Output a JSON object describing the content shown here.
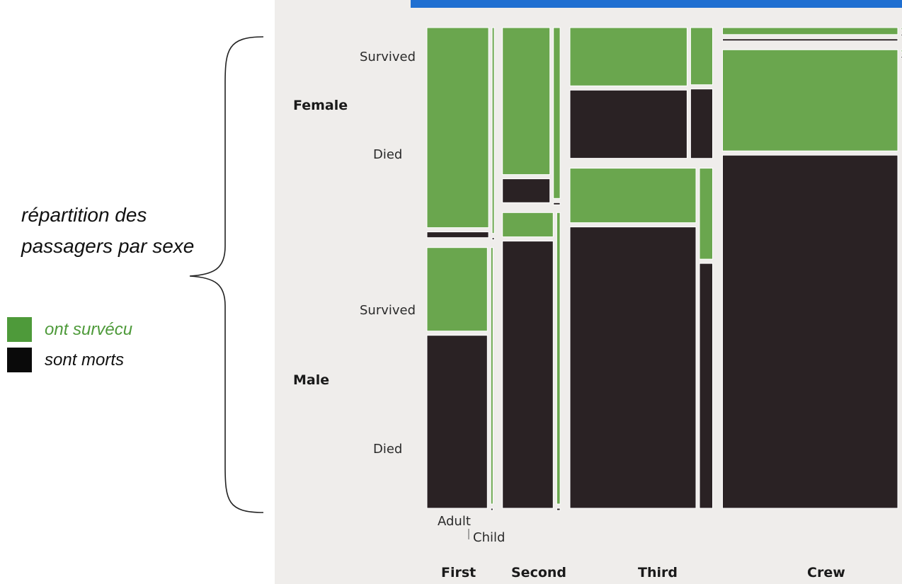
{
  "annotation": {
    "text": "répartition des passagers par sexe"
  },
  "legend": [
    {
      "label": "ont survécu",
      "color": "#4e9a3a",
      "text_color": "#4e9a3a"
    },
    {
      "label": "sont morts",
      "color": "#0a0a0a",
      "text_color": "#111111"
    }
  ],
  "colors": {
    "survived": "#6aa64e",
    "died": "#2a2224",
    "cell_border": "#ffffff",
    "background": "#efedeb",
    "heading_blue": "#1f6fd1"
  },
  "chart_data": {
    "type": "mosaic",
    "title": "",
    "classes": [
      "First",
      "Second",
      "Third",
      "Crew"
    ],
    "sexes": [
      "Female",
      "Male"
    ],
    "ages": [
      "Adult",
      "Child"
    ],
    "outcomes": [
      "Survived",
      "Died"
    ],
    "outcome_labels": [
      "Survived",
      "Died",
      "Survived",
      "Died"
    ],
    "age_labels": [
      "Adult",
      "Child"
    ],
    "counts": {
      "First": {
        "Female": {
          "Adult": {
            "Survived": 140,
            "Died": 4
          },
          "Child": {
            "Survived": 1,
            "Died": 0
          }
        },
        "Male": {
          "Adult": {
            "Survived": 57,
            "Died": 118
          },
          "Child": {
            "Survived": 5,
            "Died": 0
          }
        }
      },
      "Second": {
        "Female": {
          "Adult": {
            "Survived": 80,
            "Died": 13
          },
          "Child": {
            "Survived": 13,
            "Died": 0
          }
        },
        "Male": {
          "Adult": {
            "Survived": 14,
            "Died": 154
          },
          "Child": {
            "Survived": 11,
            "Died": 0
          }
        }
      },
      "Third": {
        "Female": {
          "Adult": {
            "Survived": 76,
            "Died": 89
          },
          "Child": {
            "Survived": 14,
            "Died": 17
          }
        },
        "Male": {
          "Adult": {
            "Survived": 75,
            "Died": 387
          },
          "Child": {
            "Survived": 13,
            "Died": 35
          }
        }
      },
      "Crew": {
        "Female": {
          "Adult": {
            "Survived": 20,
            "Died": 3
          },
          "Child": {
            "Survived": 0,
            "Died": 0
          }
        },
        "Male": {
          "Adult": {
            "Survived": 192,
            "Died": 670
          },
          "Child": {
            "Survived": 0,
            "Died": 0
          }
        }
      }
    }
  }
}
